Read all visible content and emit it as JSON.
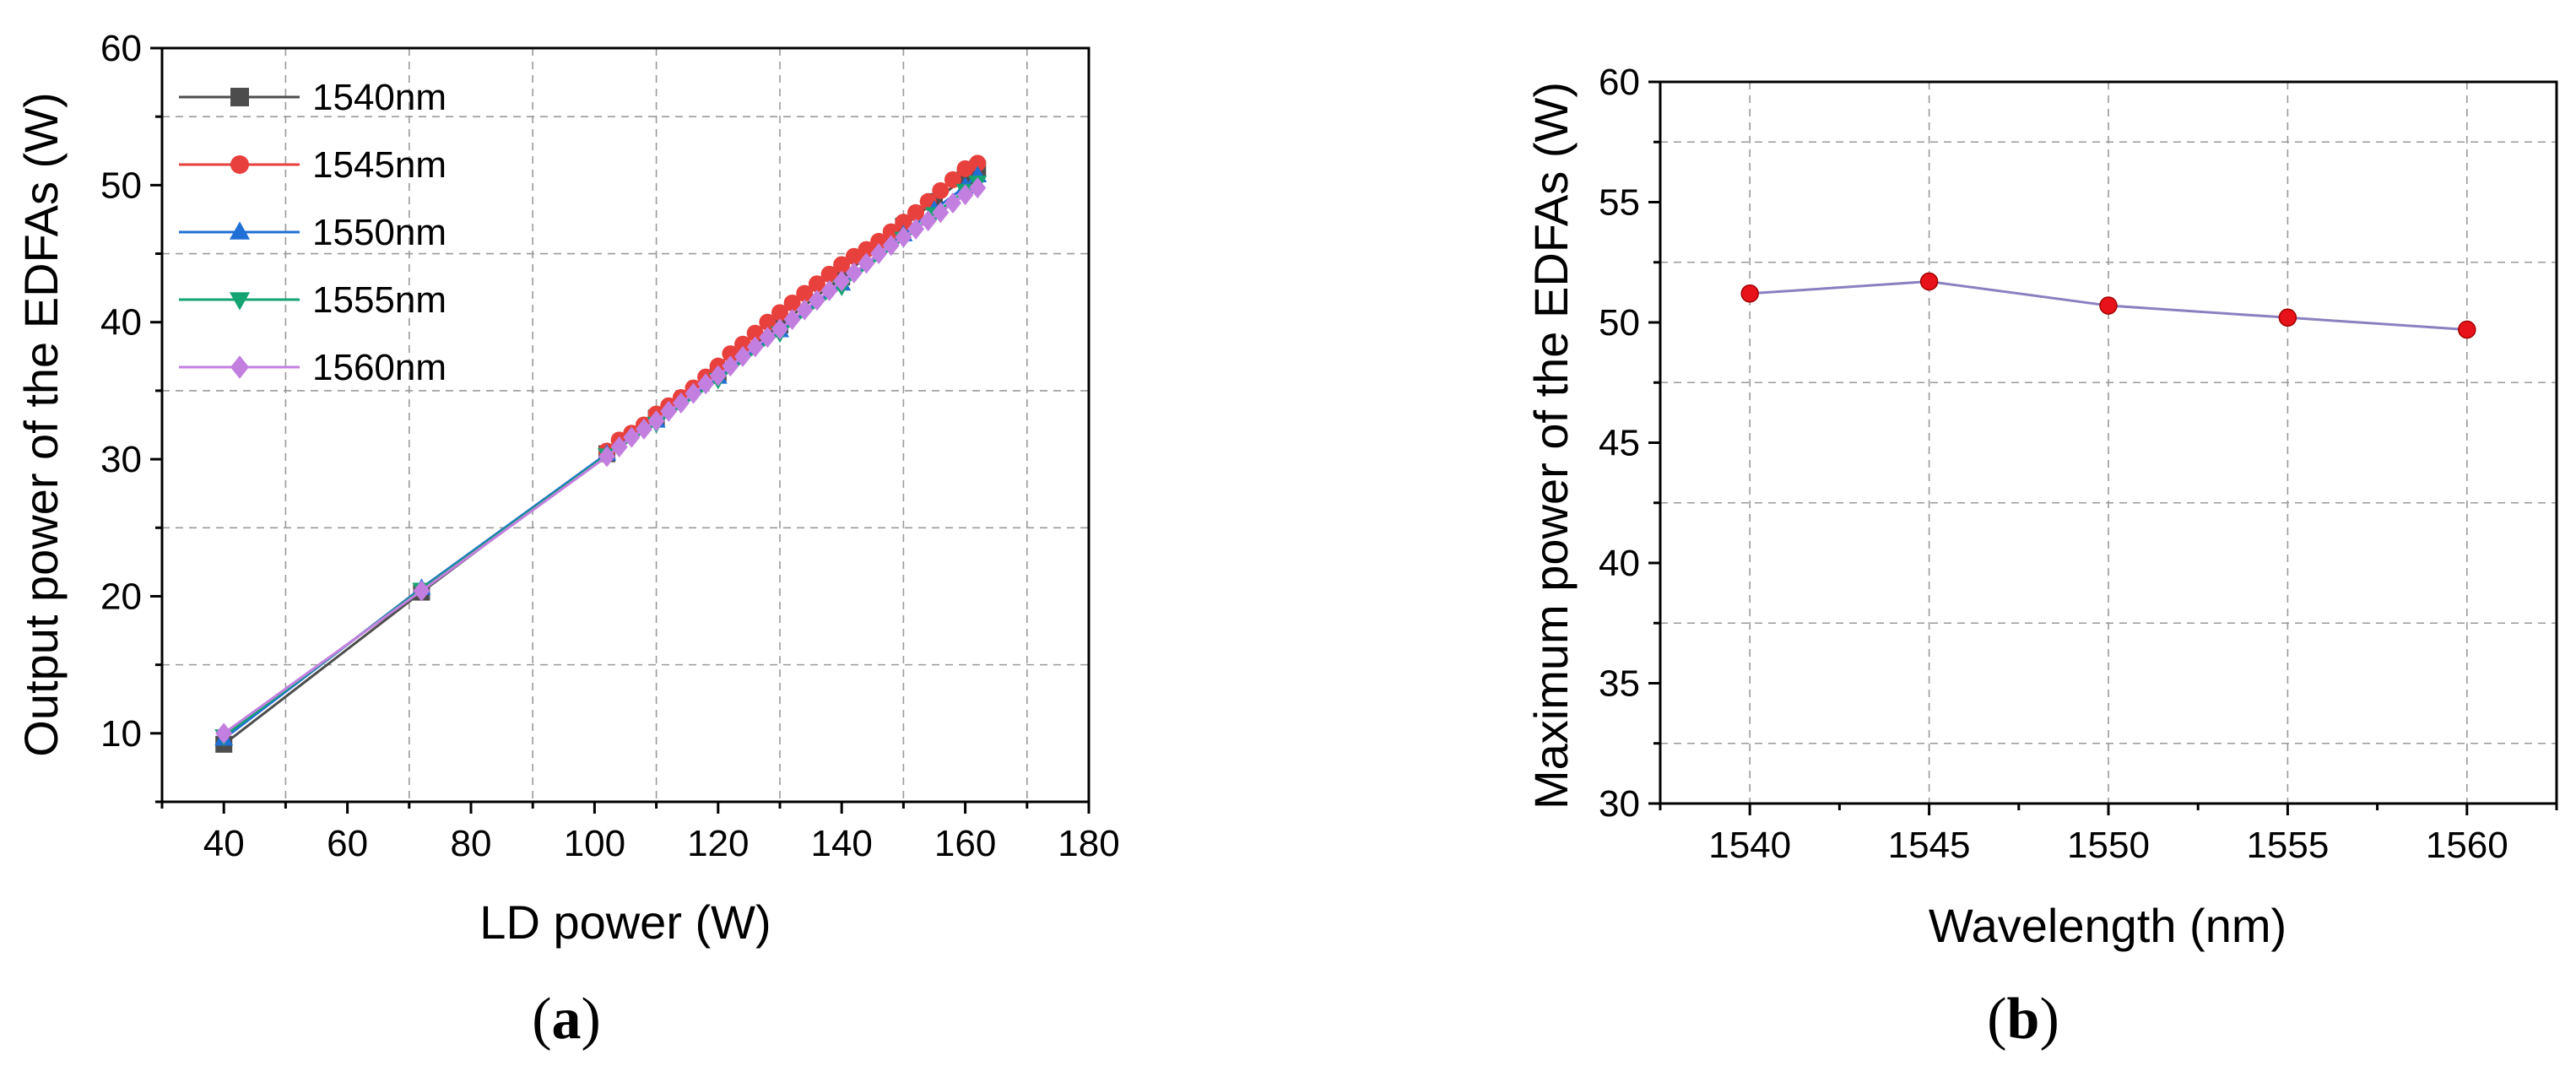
{
  "chart_data": [
    {
      "type": "line",
      "xlabel": "LD power (W)",
      "ylabel": "Output power of the EDFAs (W)",
      "xlim": [
        30,
        180
      ],
      "ylim": [
        5,
        60
      ],
      "xticks": [
        40,
        60,
        80,
        100,
        120,
        140,
        160,
        180
      ],
      "yticks": [
        10,
        20,
        30,
        40,
        50,
        60
      ],
      "grid": true,
      "legend_position": "top-left",
      "panel_label": {
        "open": "(",
        "letter": "a",
        "close": ")"
      },
      "series": [
        {
          "name": "1540nm",
          "marker": "square",
          "color": "#4d4d4d",
          "x": [
            40,
            72,
            102,
            110,
            120,
            130,
            140,
            150,
            155,
            160,
            162
          ],
          "y": [
            9.2,
            20.3,
            30.4,
            33.0,
            36.3,
            39.8,
            43.3,
            47.0,
            48.8,
            50.6,
            51.2
          ]
        },
        {
          "name": "1545nm",
          "marker": "circle",
          "color": "#e8403c",
          "x": [
            102,
            104,
            106,
            108,
            110,
            112,
            114,
            116,
            118,
            120,
            122,
            124,
            126,
            128,
            130,
            132,
            134,
            136,
            138,
            140,
            142,
            144,
            146,
            148,
            150,
            152,
            154,
            156,
            158,
            160,
            162
          ],
          "y": [
            30.6,
            31.4,
            31.9,
            32.5,
            33.3,
            33.9,
            34.5,
            35.2,
            36.0,
            36.8,
            37.7,
            38.4,
            39.2,
            40.0,
            40.7,
            41.4,
            42.1,
            42.8,
            43.5,
            44.2,
            44.8,
            45.3,
            45.9,
            46.6,
            47.3,
            48.0,
            48.8,
            49.6,
            50.4,
            51.2,
            51.6
          ]
        },
        {
          "name": "1550nm",
          "marker": "triangle-up",
          "color": "#1f6fd6",
          "x": [
            40,
            72,
            102,
            110,
            120,
            130,
            140,
            150,
            155,
            160,
            162
          ],
          "y": [
            9.6,
            20.6,
            30.4,
            32.8,
            36.0,
            39.4,
            42.8,
            46.4,
            48.2,
            49.9,
            50.7
          ]
        },
        {
          "name": "1555nm",
          "marker": "triangle-down",
          "color": "#14a472",
          "x": [
            40,
            72,
            102,
            110,
            120,
            130,
            140,
            150,
            155,
            160,
            162
          ],
          "y": [
            9.8,
            20.5,
            30.3,
            32.6,
            35.8,
            39.2,
            42.6,
            46.1,
            47.9,
            49.6,
            50.2
          ]
        },
        {
          "name": "1560nm",
          "marker": "diamond",
          "color": "#c27fe0",
          "x": [
            40,
            72,
            102,
            104,
            106,
            108,
            110,
            112,
            114,
            116,
            118,
            120,
            122,
            124,
            126,
            128,
            130,
            132,
            134,
            136,
            138,
            140,
            142,
            144,
            146,
            148,
            150,
            152,
            154,
            156,
            158,
            160,
            162
          ],
          "y": [
            10.0,
            20.4,
            30.2,
            30.9,
            31.6,
            32.2,
            32.8,
            33.5,
            34.1,
            34.8,
            35.5,
            36.1,
            36.8,
            37.5,
            38.2,
            38.9,
            39.5,
            40.2,
            40.9,
            41.6,
            42.3,
            43.0,
            43.6,
            44.3,
            45.0,
            45.6,
            46.2,
            46.8,
            47.4,
            48.0,
            48.7,
            49.3,
            49.8
          ]
        }
      ]
    },
    {
      "type": "line",
      "xlabel": "Wavelength (nm)",
      "ylabel": "Maximum power of the EDFAs (W)",
      "xlim": [
        1537.5,
        1562.5
      ],
      "ylim": [
        30,
        60
      ],
      "xticks": [
        1540,
        1545,
        1550,
        1555,
        1560
      ],
      "yticks": [
        30,
        35,
        40,
        45,
        50,
        55,
        60
      ],
      "grid": true,
      "panel_label": {
        "open": "(",
        "letter": "b",
        "close": ")"
      },
      "series": [
        {
          "marker": "circle",
          "color": "#e8131a",
          "line_color": "#8a80c0",
          "x": [
            1540,
            1545,
            1550,
            1555,
            1560
          ],
          "y": [
            51.2,
            51.7,
            50.7,
            50.2,
            49.7
          ]
        }
      ]
    }
  ]
}
